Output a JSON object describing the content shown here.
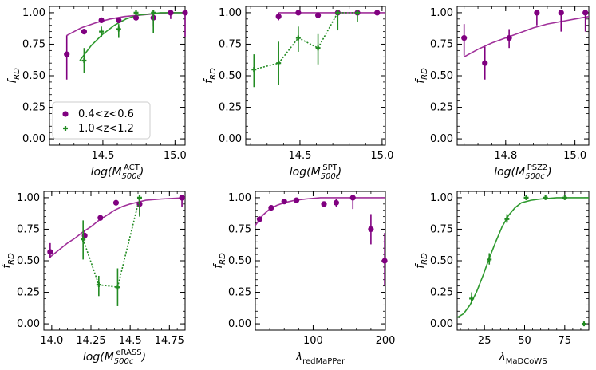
{
  "colors": {
    "purple": "#800080",
    "green": "#228B22",
    "fit_purple": "#A0309A",
    "fit_green": "#2E9A2E"
  },
  "legend": {
    "entries": [
      {
        "label": "0.4<z<0.6",
        "color": "#800080",
        "marker": "circle"
      },
      {
        "label": "1.0<z<1.2",
        "color": "#228B22",
        "marker": "plus"
      }
    ]
  },
  "chart_data": [
    {
      "type": "scatter",
      "id": "act",
      "ylabel": "f_RD",
      "xlabel": {
        "pre": "log(M",
        "sub": "500c",
        "sup": "ACT",
        "post": ")"
      },
      "xlim": [
        14.13,
        15.07
      ],
      "ylim": [
        -0.05,
        1.05
      ],
      "xticks": [
        {
          "v": 14.5,
          "label": "14.5"
        },
        {
          "v": 15.0,
          "label": "15.0"
        }
      ],
      "yticks": [
        {
          "v": 0,
          "label": "0.00"
        },
        {
          "v": 0.25,
          "label": "0.25"
        },
        {
          "v": 0.5,
          "label": "0.50"
        },
        {
          "v": 0.75,
          "label": "0.75"
        },
        {
          "v": 1,
          "label": "1.00"
        }
      ],
      "series": [
        {
          "name": "0.4<z<0.6",
          "color": "purple",
          "marker": "circle",
          "points": [
            {
              "x": 14.25,
              "y": 0.67,
              "lo": 0.47,
              "hi": 0.82
            },
            {
              "x": 14.37,
              "y": 0.85,
              "lo": 0.83,
              "hi": 0.87
            },
            {
              "x": 14.49,
              "y": 0.94,
              "lo": 0.92,
              "hi": 0.95
            },
            {
              "x": 14.61,
              "y": 0.94,
              "lo": 0.92,
              "hi": 0.96
            },
            {
              "x": 14.73,
              "y": 0.96,
              "lo": 0.94,
              "hi": 0.98
            },
            {
              "x": 14.85,
              "y": 0.96,
              "lo": 0.89,
              "hi": 0.99
            },
            {
              "x": 14.97,
              "y": 1.0,
              "lo": 0.95,
              "hi": 1.0
            },
            {
              "x": 15.07,
              "y": 1.0,
              "lo": 0.81,
              "hi": 1.0
            }
          ]
        },
        {
          "name": "1.0<z<1.2",
          "color": "green",
          "marker": "plus",
          "points": [
            {
              "x": 14.37,
              "y": 0.62,
              "lo": 0.52,
              "hi": 0.72
            },
            {
              "x": 14.49,
              "y": 0.85,
              "lo": 0.81,
              "hi": 0.89
            },
            {
              "x": 14.61,
              "y": 0.87,
              "lo": 0.8,
              "hi": 0.91
            },
            {
              "x": 14.73,
              "y": 1.0,
              "lo": 0.97,
              "hi": 1.0
            },
            {
              "x": 14.85,
              "y": 1.0,
              "lo": 0.84,
              "hi": 1.0
            }
          ]
        }
      ],
      "fits": [
        {
          "series": "purple",
          "points": [
            [
              14.25,
              0.82
            ],
            [
              14.35,
              0.88
            ],
            [
              14.45,
              0.92
            ],
            [
              14.55,
              0.95
            ],
            [
              14.65,
              0.97
            ],
            [
              14.75,
              0.98
            ],
            [
              14.85,
              0.99
            ],
            [
              14.95,
              1.0
            ],
            [
              15.07,
              1.0
            ]
          ]
        },
        {
          "series": "green",
          "points": [
            [
              14.34,
              0.62
            ],
            [
              14.42,
              0.74
            ],
            [
              14.5,
              0.83
            ],
            [
              14.58,
              0.9
            ],
            [
              14.66,
              0.95
            ],
            [
              14.74,
              0.98
            ],
            [
              14.82,
              0.99
            ],
            [
              14.9,
              1.0
            ],
            [
              15.07,
              1.0
            ]
          ]
        }
      ]
    },
    {
      "type": "scatter",
      "id": "spt",
      "ylabel": "f_RD",
      "xlabel": {
        "pre": "log(M",
        "sub": "500c",
        "sup": "SPT",
        "post": ")"
      },
      "xlim": [
        14.17,
        15.02
      ],
      "ylim": [
        -0.05,
        1.05
      ],
      "xticks": [
        {
          "v": 14.5,
          "label": "14.5"
        },
        {
          "v": 15.0,
          "label": "15.0"
        }
      ],
      "yticks": [
        {
          "v": 0,
          "label": "0.00"
        },
        {
          "v": 0.25,
          "label": "0.25"
        },
        {
          "v": 0.5,
          "label": "0.50"
        },
        {
          "v": 0.75,
          "label": "0.75"
        },
        {
          "v": 1,
          "label": "1.00"
        }
      ],
      "series": [
        {
          "name": "0.4<z<0.6",
          "color": "purple",
          "marker": "circle",
          "points": [
            {
              "x": 14.37,
              "y": 0.97,
              "lo": 0.94,
              "hi": 1.0
            },
            {
              "x": 14.49,
              "y": 1.0,
              "lo": 1.0,
              "hi": 1.0
            },
            {
              "x": 14.61,
              "y": 0.98,
              "lo": 0.96,
              "hi": 1.0
            },
            {
              "x": 14.73,
              "y": 1.0,
              "lo": 1.0,
              "hi": 1.0
            },
            {
              "x": 14.85,
              "y": 1.0,
              "lo": 1.0,
              "hi": 1.0
            },
            {
              "x": 14.97,
              "y": 1.0,
              "lo": 1.0,
              "hi": 1.0
            }
          ]
        },
        {
          "name": "1.0<z<1.2",
          "color": "green",
          "marker": "plus",
          "points": [
            {
              "x": 14.22,
              "y": 0.55,
              "lo": 0.41,
              "hi": 0.67
            },
            {
              "x": 14.37,
              "y": 0.6,
              "lo": 0.43,
              "hi": 0.77
            },
            {
              "x": 14.49,
              "y": 0.8,
              "lo": 0.69,
              "hi": 0.89
            },
            {
              "x": 14.61,
              "y": 0.72,
              "lo": 0.59,
              "hi": 0.83
            },
            {
              "x": 14.73,
              "y": 1.0,
              "lo": 0.86,
              "hi": 1.0
            },
            {
              "x": 14.85,
              "y": 1.0,
              "lo": 0.93,
              "hi": 1.0
            }
          ]
        }
      ],
      "connect": [
        "green"
      ],
      "fits": [
        {
          "series": "purple",
          "points": [
            [
              14.37,
              1.0
            ],
            [
              15.02,
              1.0
            ]
          ]
        }
      ]
    },
    {
      "type": "scatter",
      "id": "psz2",
      "ylabel": "f_RD",
      "xlabel": {
        "pre": "log(M",
        "sub": "500c",
        "sup": "PSZ2",
        "post": ")"
      },
      "xlim": [
        14.66,
        15.04
      ],
      "ylim": [
        -0.05,
        1.05
      ],
      "xticks": [
        {
          "v": 14.8,
          "label": "14.8"
        },
        {
          "v": 15.0,
          "label": "15.0"
        }
      ],
      "yticks": [
        {
          "v": 0,
          "label": "0.00"
        },
        {
          "v": 0.25,
          "label": "0.25"
        },
        {
          "v": 0.5,
          "label": "0.50"
        },
        {
          "v": 0.75,
          "label": "0.75"
        },
        {
          "v": 1,
          "label": "1.00"
        }
      ],
      "series": [
        {
          "name": "0.4<z<0.6",
          "color": "purple",
          "marker": "circle",
          "points": [
            {
              "x": 14.68,
              "y": 0.8,
              "lo": 0.66,
              "hi": 0.91
            },
            {
              "x": 14.74,
              "y": 0.6,
              "lo": 0.47,
              "hi": 0.73
            },
            {
              "x": 14.81,
              "y": 0.8,
              "lo": 0.72,
              "hi": 0.87
            },
            {
              "x": 14.89,
              "y": 1.0,
              "lo": 0.9,
              "hi": 1.0
            },
            {
              "x": 14.96,
              "y": 1.0,
              "lo": 0.85,
              "hi": 1.0
            },
            {
              "x": 15.03,
              "y": 1.0,
              "lo": 0.85,
              "hi": 1.0
            }
          ]
        }
      ],
      "fits": [
        {
          "series": "purple",
          "points": [
            [
              14.68,
              0.65
            ],
            [
              14.72,
              0.71
            ],
            [
              14.76,
              0.76
            ],
            [
              14.8,
              0.8
            ],
            [
              14.84,
              0.84
            ],
            [
              14.88,
              0.88
            ],
            [
              14.92,
              0.91
            ],
            [
              14.96,
              0.93
            ],
            [
              15.0,
              0.95
            ],
            [
              15.04,
              0.97
            ]
          ]
        }
      ]
    },
    {
      "type": "scatter",
      "id": "erass",
      "ylabel": "f_RD",
      "xlabel": {
        "pre": "log(M",
        "sub": "500c",
        "sup": "eRASS",
        "post": ")"
      },
      "xlim": [
        13.95,
        14.85
      ],
      "ylim": [
        -0.05,
        1.05
      ],
      "xticks": [
        {
          "v": 14.0,
          "label": "14.0"
        },
        {
          "v": 14.25,
          "label": "14.25"
        },
        {
          "v": 14.5,
          "label": "14.5"
        },
        {
          "v": 14.75,
          "label": "14.75"
        }
      ],
      "yticks": [
        {
          "v": 0,
          "label": "0.00"
        },
        {
          "v": 0.25,
          "label": "0.25"
        },
        {
          "v": 0.5,
          "label": "0.50"
        },
        {
          "v": 0.75,
          "label": "0.75"
        },
        {
          "v": 1,
          "label": "1.00"
        }
      ],
      "series": [
        {
          "name": "0.4<z<0.6",
          "color": "purple",
          "marker": "circle",
          "points": [
            {
              "x": 13.99,
              "y": 0.57,
              "lo": 0.52,
              "hi": 0.64
            },
            {
              "x": 14.21,
              "y": 0.7,
              "lo": 0.66,
              "hi": 0.74
            },
            {
              "x": 14.31,
              "y": 0.84,
              "lo": 0.82,
              "hi": 0.86
            },
            {
              "x": 14.41,
              "y": 0.96,
              "lo": 0.94,
              "hi": 0.98
            },
            {
              "x": 14.56,
              "y": 0.95,
              "lo": 0.86,
              "hi": 1.0
            },
            {
              "x": 14.83,
              "y": 1.0,
              "lo": 0.93,
              "hi": 1.0
            }
          ]
        },
        {
          "name": "1.0<z<1.2",
          "color": "green",
          "marker": "plus",
          "points": [
            {
              "x": 14.2,
              "y": 0.67,
              "lo": 0.51,
              "hi": 0.82
            },
            {
              "x": 14.3,
              "y": 0.31,
              "lo": 0.22,
              "hi": 0.38
            },
            {
              "x": 14.42,
              "y": 0.29,
              "lo": 0.14,
              "hi": 0.44
            },
            {
              "x": 14.56,
              "y": 1.0,
              "lo": 0.85,
              "hi": 1.0
            }
          ]
        }
      ],
      "connect": [
        "green"
      ],
      "fits": [
        {
          "series": "purple",
          "points": [
            [
              13.99,
              0.53
            ],
            [
              14.05,
              0.59
            ],
            [
              14.1,
              0.64
            ],
            [
              14.15,
              0.68
            ],
            [
              14.2,
              0.73
            ],
            [
              14.25,
              0.77
            ],
            [
              14.3,
              0.82
            ],
            [
              14.35,
              0.86
            ],
            [
              14.4,
              0.9
            ],
            [
              14.45,
              0.93
            ],
            [
              14.5,
              0.95
            ],
            [
              14.6,
              0.98
            ],
            [
              14.7,
              0.99
            ],
            [
              14.85,
              1.0
            ]
          ]
        }
      ]
    },
    {
      "type": "scatter",
      "id": "redmapper",
      "ylabel": "f_RD",
      "xlabel": {
        "pre": "λ",
        "sub": "redMaPPer",
        "sup": "",
        "post": ""
      },
      "xlim": [
        20,
        200
      ],
      "ylim": [
        -0.05,
        1.05
      ],
      "xticks": [
        {
          "v": 100,
          "label": "100"
        },
        {
          "v": 200,
          "label": "200"
        }
      ],
      "yticks": [
        {
          "v": 0,
          "label": "0.00"
        },
        {
          "v": 0.25,
          "label": "0.25"
        },
        {
          "v": 0.5,
          "label": "0.50"
        },
        {
          "v": 0.75,
          "label": "0.75"
        },
        {
          "v": 1,
          "label": "1.00"
        }
      ],
      "series": [
        {
          "name": "0.4<z<0.6",
          "color": "purple",
          "marker": "circle",
          "points": [
            {
              "x": 26,
              "y": 0.83,
              "lo": 0.81,
              "hi": 0.85
            },
            {
              "x": 42,
              "y": 0.92,
              "lo": 0.9,
              "hi": 0.94
            },
            {
              "x": 60,
              "y": 0.97,
              "lo": 0.95,
              "hi": 0.98
            },
            {
              "x": 77,
              "y": 0.98,
              "lo": 0.97,
              "hi": 0.99
            },
            {
              "x": 115,
              "y": 0.95,
              "lo": 0.93,
              "hi": 0.97
            },
            {
              "x": 132,
              "y": 0.96,
              "lo": 0.93,
              "hi": 0.99
            },
            {
              "x": 155,
              "y": 1.0,
              "lo": 0.91,
              "hi": 1.0
            },
            {
              "x": 180,
              "y": 0.75,
              "lo": 0.63,
              "hi": 0.87
            },
            {
              "x": 199,
              "y": 0.5,
              "lo": 0.3,
              "hi": 0.72
            }
          ]
        }
      ],
      "fits": [
        {
          "series": "purple",
          "points": [
            [
              20,
              0.78
            ],
            [
              25,
              0.82
            ],
            [
              30,
              0.86
            ],
            [
              40,
              0.91
            ],
            [
              50,
              0.94
            ],
            [
              60,
              0.96
            ],
            [
              75,
              0.98
            ],
            [
              90,
              0.99
            ],
            [
              110,
              1.0
            ],
            [
              200,
              1.0
            ]
          ]
        }
      ]
    },
    {
      "type": "scatter",
      "id": "madcows",
      "ylabel": "f_RD",
      "xlabel": {
        "pre": "λ",
        "sub": "MaDCoWS",
        "sup": "",
        "post": ""
      },
      "xlim": [
        8,
        90
      ],
      "ylim": [
        -0.05,
        1.05
      ],
      "xticks": [
        {
          "v": 25,
          "label": "25"
        },
        {
          "v": 50,
          "label": "50"
        },
        {
          "v": 75,
          "label": "75"
        }
      ],
      "yticks": [
        {
          "v": 0,
          "label": "0.00"
        },
        {
          "v": 0.25,
          "label": "0.25"
        },
        {
          "v": 0.5,
          "label": "0.50"
        },
        {
          "v": 0.75,
          "label": "0.75"
        },
        {
          "v": 1,
          "label": "1.00"
        }
      ],
      "series": [
        {
          "name": "1.0<z<1.2",
          "color": "green",
          "marker": "plus",
          "points": [
            {
              "x": 17,
              "y": 0.2,
              "lo": 0.16,
              "hi": 0.25
            },
            {
              "x": 28,
              "y": 0.51,
              "lo": 0.47,
              "hi": 0.56
            },
            {
              "x": 39,
              "y": 0.83,
              "lo": 0.8,
              "hi": 0.87
            },
            {
              "x": 51,
              "y": 1.0,
              "lo": 0.98,
              "hi": 1.0
            },
            {
              "x": 63,
              "y": 1.0,
              "lo": 0.99,
              "hi": 1.0
            },
            {
              "x": 75,
              "y": 1.0,
              "lo": 0.99,
              "hi": 1.0
            },
            {
              "x": 87,
              "y": 0.0,
              "lo": 0.0,
              "hi": 0.0
            }
          ]
        }
      ],
      "fits": [
        {
          "series": "green",
          "points": [
            [
              8,
              0.05
            ],
            [
              12,
              0.08
            ],
            [
              16,
              0.15
            ],
            [
              20,
              0.25
            ],
            [
              24,
              0.38
            ],
            [
              28,
              0.52
            ],
            [
              32,
              0.65
            ],
            [
              36,
              0.77
            ],
            [
              40,
              0.86
            ],
            [
              44,
              0.92
            ],
            [
              48,
              0.96
            ],
            [
              54,
              0.98
            ],
            [
              60,
              0.99
            ],
            [
              70,
              1.0
            ],
            [
              90,
              1.0
            ]
          ]
        }
      ]
    }
  ]
}
